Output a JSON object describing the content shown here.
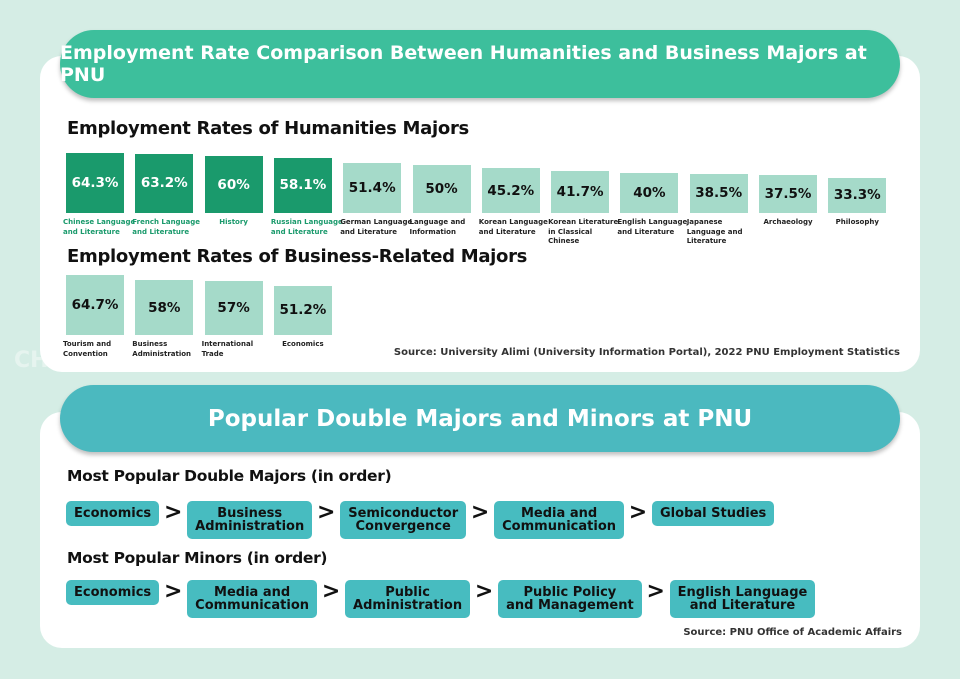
{
  "header": {
    "title": "Employment Rate Comparison Between Humanities and Business Majors at PNU",
    "color": "#3dbf9c"
  },
  "watermark": "CH",
  "colors": {
    "highlight_bar": "#1a9a6c",
    "normal_bar": "#a5dac9",
    "chip": "#47bcc0"
  },
  "chart_data": [
    {
      "type": "bar",
      "title": "Employment Rates of Humanities Majors",
      "ylabel": "",
      "xlabel": "",
      "categories": [
        "Chinese Language and Literature",
        "French Language and Literature",
        "History",
        "Russian Language and Literature",
        "German Language and Literature",
        "Language and Information",
        "Korean Language and Literature",
        "Korean Literature in Classical Chinese",
        "English Language and Literature",
        "Japanese Language and Literature",
        "Archaeology",
        "Philosophy"
      ],
      "values": [
        64.3,
        63.2,
        60,
        58.1,
        51.4,
        50,
        45.2,
        41.7,
        40,
        38.5,
        37.5,
        33.3
      ],
      "labels": [
        "64.3%",
        "63.2%",
        "60%",
        "58.1%",
        "51.4%",
        "50%",
        "45.2%",
        "41.7%",
        "40%",
        "38.5%",
        "37.5%",
        "33.3%"
      ],
      "highlighted": [
        true,
        true,
        true,
        true,
        false,
        false,
        false,
        false,
        false,
        false,
        false,
        false
      ]
    },
    {
      "type": "bar",
      "title": "Employment Rates of Business-Related Majors",
      "ylabel": "",
      "xlabel": "",
      "categories": [
        "Tourism and Convention",
        "Business Administration",
        "International Trade",
        "Economics"
      ],
      "values": [
        64.7,
        58,
        57,
        51.2
      ],
      "labels": [
        "64.7%",
        "58%",
        "57%",
        "51.2%"
      ],
      "highlighted": [
        false,
        false,
        false,
        false
      ]
    }
  ],
  "source1": "Source: University Alimi (University Information Portal), 2022 PNU Employment Statistics",
  "section2": {
    "title": "Popular Double Majors and Minors at PNU",
    "color": "#4bb9bf",
    "double_title": "Most Popular Double Majors (in order)",
    "double": [
      "Economics",
      "Business\nAdministration",
      "Semiconductor\nConvergence",
      "Media and\nCommunication",
      "Global Studies"
    ],
    "minor_title": "Most Popular Minors (in order)",
    "minors": [
      "Economics",
      "Media and\nCommunication",
      "Public\nAdministration",
      "Public Policy\nand Management",
      "English Language\nand Literature"
    ],
    "arrow": ">",
    "source": "Source: PNU Office of Academic Affairs"
  }
}
